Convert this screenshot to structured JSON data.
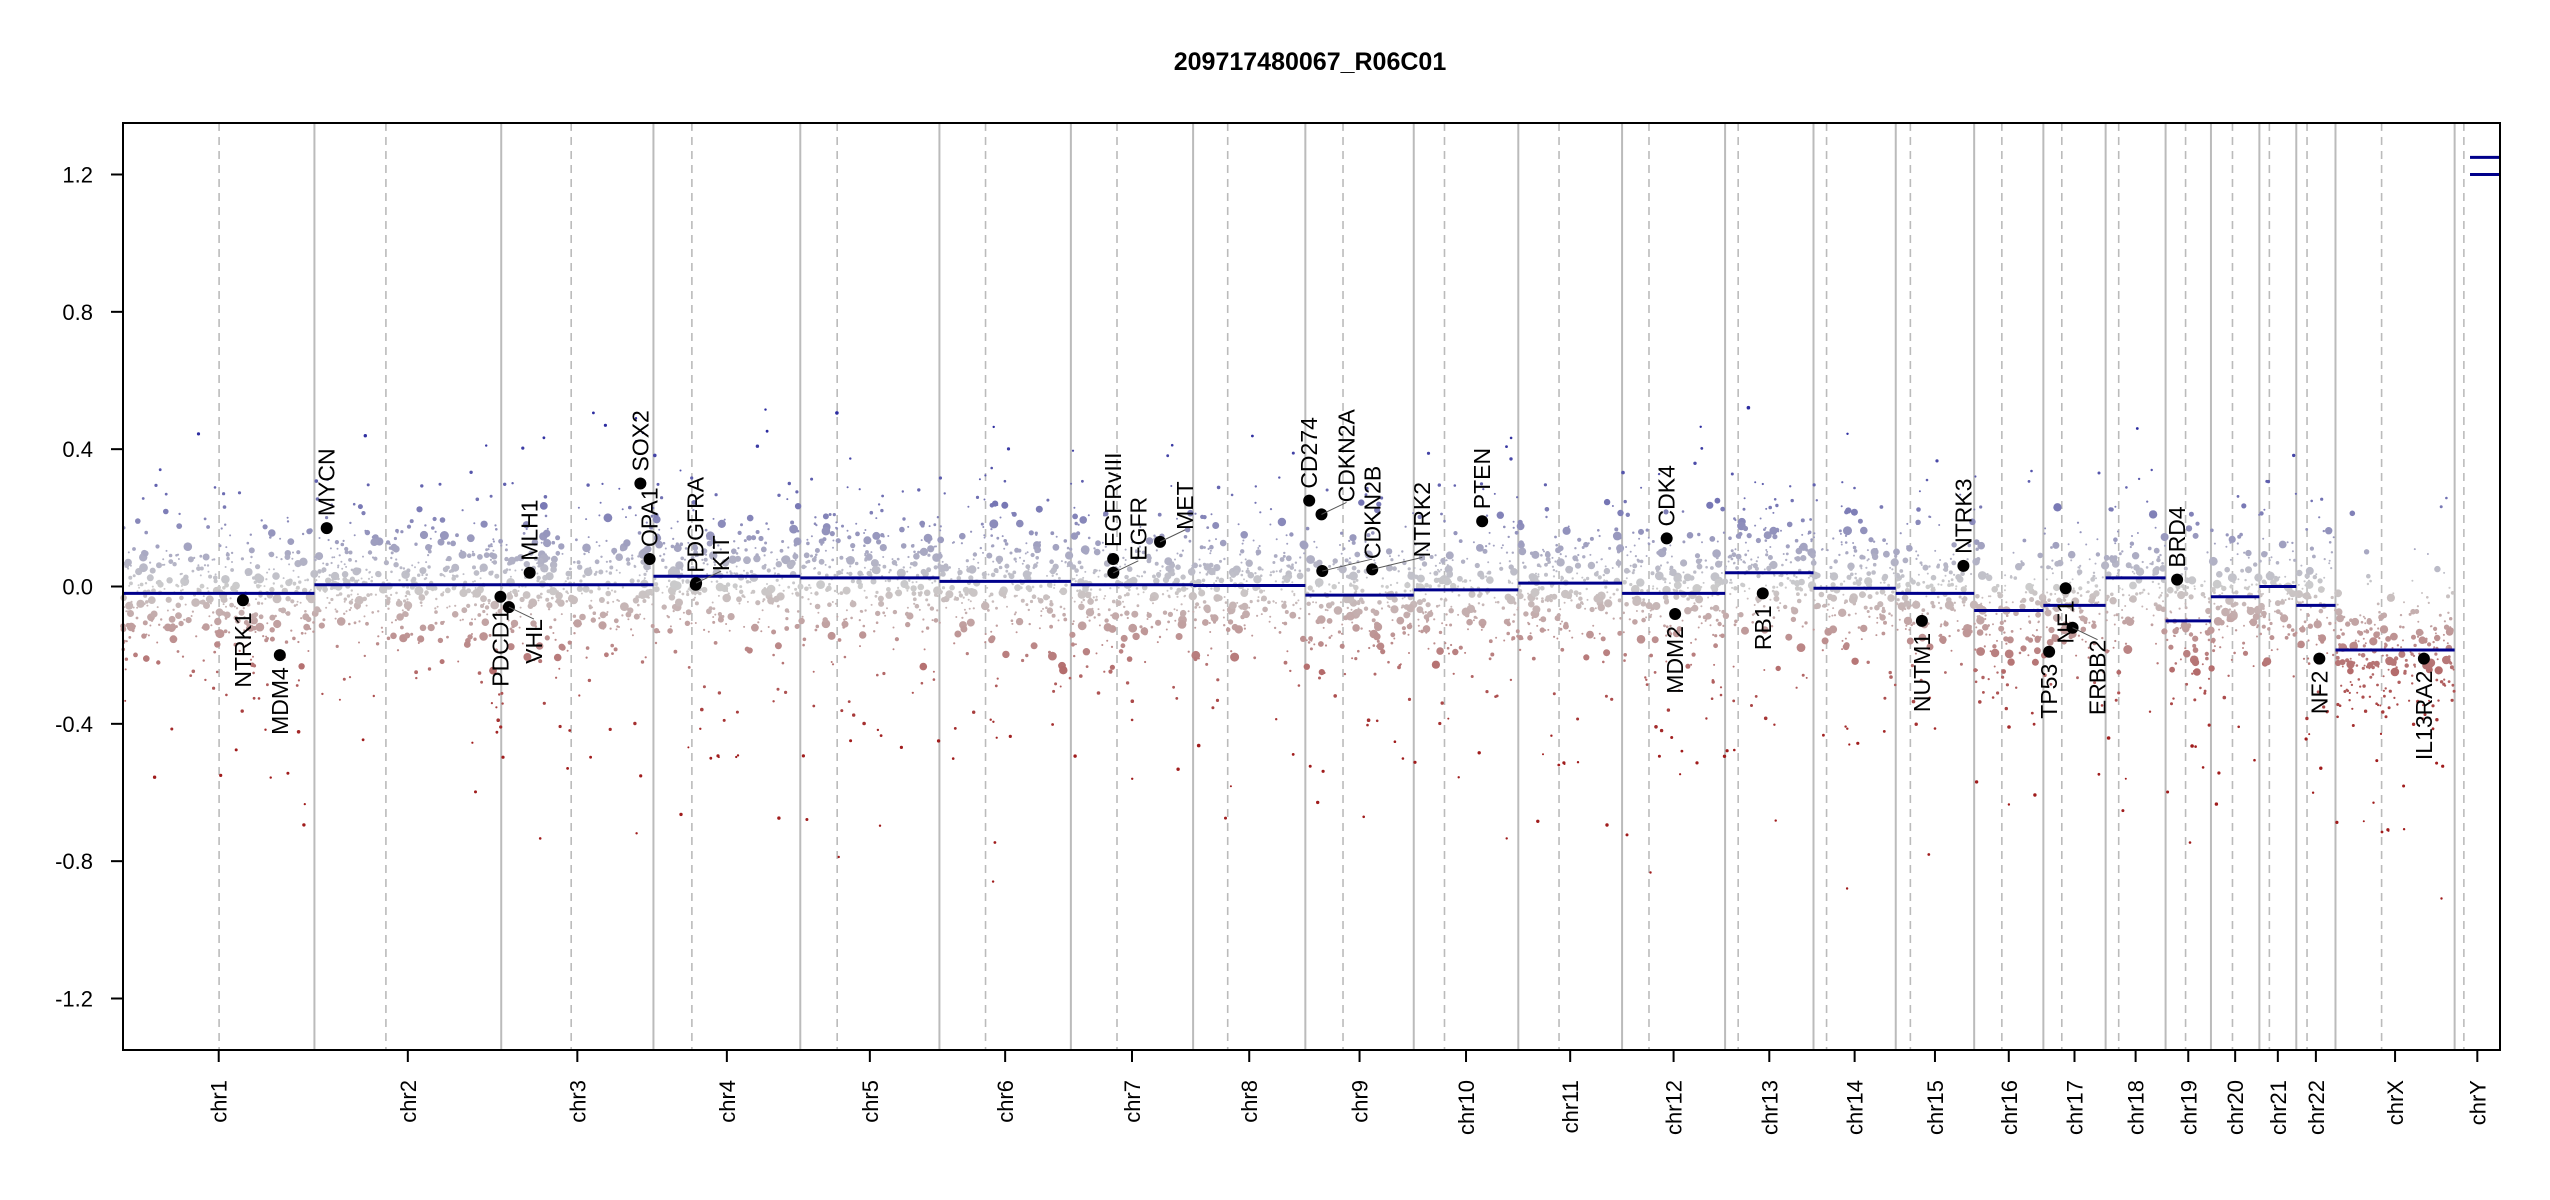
{
  "chart_data": {
    "type": "scatter",
    "title": "209717480067_R06C01",
    "xlabel": "",
    "ylabel": "",
    "ylim": [
      -1.35,
      1.35
    ],
    "yticks": [
      "1.2",
      "0.8",
      "0.4",
      "0.0",
      "-0.4",
      "-0.8",
      "-1.2"
    ],
    "ytick_values": [
      1.2,
      0.8,
      0.4,
      0.0,
      -0.4,
      -0.8,
      -1.2
    ],
    "grid": false,
    "chromosomes": [
      {
        "name": "chr1",
        "length_mb": 249,
        "centromere_mb": 125,
        "segments": [
          {
            "start": 0,
            "end": 249,
            "value": -0.02
          }
        ]
      },
      {
        "name": "chr2",
        "length_mb": 243,
        "centromere_mb": 93,
        "segments": [
          {
            "start": 0,
            "end": 243,
            "value": 0.005
          }
        ]
      },
      {
        "name": "chr3",
        "length_mb": 198,
        "centromere_mb": 91,
        "segments": [
          {
            "start": 0,
            "end": 198,
            "value": 0.005
          }
        ]
      },
      {
        "name": "chr4",
        "length_mb": 191,
        "centromere_mb": 50,
        "segments": [
          {
            "start": 0,
            "end": 191,
            "value": 0.03
          }
        ]
      },
      {
        "name": "chr5",
        "length_mb": 181,
        "centromere_mb": 48,
        "segments": [
          {
            "start": 0,
            "end": 181,
            "value": 0.025
          }
        ]
      },
      {
        "name": "chr6",
        "length_mb": 171,
        "centromere_mb": 60,
        "segments": [
          {
            "start": 0,
            "end": 171,
            "value": 0.015
          }
        ]
      },
      {
        "name": "chr7",
        "length_mb": 159,
        "centromere_mb": 60,
        "segments": [
          {
            "start": 0,
            "end": 159,
            "value": 0.005
          }
        ]
      },
      {
        "name": "chr8",
        "length_mb": 146,
        "centromere_mb": 45,
        "segments": [
          {
            "start": 0,
            "end": 146,
            "value": 0.003
          }
        ]
      },
      {
        "name": "chr9",
        "length_mb": 141,
        "centromere_mb": 49,
        "segments": [
          {
            "start": 0,
            "end": 141,
            "value": -0.025
          }
        ]
      },
      {
        "name": "chr10",
        "length_mb": 136,
        "centromere_mb": 40,
        "segments": [
          {
            "start": 0,
            "end": 136,
            "value": -0.01
          }
        ]
      },
      {
        "name": "chr11",
        "length_mb": 135,
        "centromere_mb": 53,
        "segments": [
          {
            "start": 0,
            "end": 135,
            "value": 0.01
          }
        ]
      },
      {
        "name": "chr12",
        "length_mb": 134,
        "centromere_mb": 35,
        "segments": [
          {
            "start": 0,
            "end": 134,
            "value": -0.02
          }
        ]
      },
      {
        "name": "chr13",
        "length_mb": 115,
        "centromere_mb": 17,
        "segments": [
          {
            "start": 0,
            "end": 115,
            "value": 0.04
          }
        ]
      },
      {
        "name": "chr14",
        "length_mb": 107,
        "centromere_mb": 17,
        "segments": [
          {
            "start": 0,
            "end": 107,
            "value": -0.005
          }
        ]
      },
      {
        "name": "chr15",
        "length_mb": 102,
        "centromere_mb": 19,
        "segments": [
          {
            "start": 0,
            "end": 102,
            "value": -0.02
          }
        ]
      },
      {
        "name": "chr16",
        "length_mb": 90,
        "centromere_mb": 36,
        "segments": [
          {
            "start": 0,
            "end": 90,
            "value": -0.07
          }
        ]
      },
      {
        "name": "chr17",
        "length_mb": 81,
        "centromere_mb": 24,
        "segments": [
          {
            "start": 0,
            "end": 81,
            "value": -0.055
          }
        ]
      },
      {
        "name": "chr18",
        "length_mb": 78,
        "centromere_mb": 17,
        "segments": [
          {
            "start": 0,
            "end": 78,
            "value": 0.025
          }
        ]
      },
      {
        "name": "chr19",
        "length_mb": 59,
        "centromere_mb": 26,
        "segments": [
          {
            "start": 0,
            "end": 59,
            "value": -0.1
          }
        ]
      },
      {
        "name": "chr20",
        "length_mb": 63,
        "centromere_mb": 28,
        "segments": [
          {
            "start": 0,
            "end": 63,
            "value": -0.03
          }
        ]
      },
      {
        "name": "chr21",
        "length_mb": 48,
        "centromere_mb": 13,
        "segments": [
          {
            "start": 0,
            "end": 48,
            "value": 0.0
          }
        ]
      },
      {
        "name": "chr22",
        "length_mb": 51,
        "centromere_mb": 14,
        "segments": [
          {
            "start": 0,
            "end": 51,
            "value": -0.055
          }
        ]
      },
      {
        "name": "chrX",
        "length_mb": 155,
        "centromere_mb": 60,
        "segments": [
          {
            "start": 0,
            "end": 155,
            "value": -0.185
          }
        ]
      },
      {
        "name": "chrY",
        "length_mb": 59,
        "centromere_mb": 12,
        "segments": [
          {
            "start": 20,
            "end": 59,
            "value": 1.25
          },
          {
            "start": 20,
            "end": 59,
            "value": 1.2
          }
        ]
      }
    ],
    "genes": [
      {
        "label": "NTRK1",
        "chr": "chr1",
        "pos_mb": 156,
        "value": -0.04
      },
      {
        "label": "MDM4",
        "chr": "chr1",
        "pos_mb": 204,
        "value": -0.2
      },
      {
        "label": "MYCN",
        "chr": "chr2",
        "pos_mb": 16,
        "value": 0.17
      },
      {
        "label": "PDCD1",
        "chr": "chr2",
        "pos_mb": 242,
        "value": -0.03
      },
      {
        "label": "VHL",
        "chr": "chr3",
        "pos_mb": 10,
        "value": -0.06
      },
      {
        "label": "MLH1",
        "chr": "chr3",
        "pos_mb": 37,
        "value": 0.04
      },
      {
        "label": "SOX2",
        "chr": "chr3",
        "pos_mb": 181,
        "value": 0.3
      },
      {
        "label": "OPA1",
        "chr": "chr3",
        "pos_mb": 193,
        "value": 0.08
      },
      {
        "label": "PDGFRA",
        "chr": "chr4",
        "pos_mb": 55,
        "value": 0.005
      },
      {
        "label": "KIT",
        "chr": "chr4",
        "pos_mb": 55.5,
        "value": 0.01
      },
      {
        "label": "EGFRvIII",
        "chr": "chr7",
        "pos_mb": 55,
        "value": 0.08
      },
      {
        "label": "EGFR",
        "chr": "chr7",
        "pos_mb": 55.2,
        "value": 0.04
      },
      {
        "label": "MET",
        "chr": "chr7",
        "pos_mb": 116,
        "value": 0.13
      },
      {
        "label": "CD274",
        "chr": "chr9",
        "pos_mb": 5,
        "value": 0.25
      },
      {
        "label": "CDKN2A",
        "chr": "chr9",
        "pos_mb": 21,
        "value": 0.21
      },
      {
        "label": "CDKN2B",
        "chr": "chr9",
        "pos_mb": 22,
        "value": 0.045
      },
      {
        "label": "NTRK2",
        "chr": "chr9",
        "pos_mb": 87,
        "value": 0.05
      },
      {
        "label": "PTEN",
        "chr": "chr10",
        "pos_mb": 89,
        "value": 0.19
      },
      {
        "label": "CDK4",
        "chr": "chr12",
        "pos_mb": 58,
        "value": 0.14
      },
      {
        "label": "MDM2",
        "chr": "chr12",
        "pos_mb": 69,
        "value": -0.08
      },
      {
        "label": "RB1",
        "chr": "chr13",
        "pos_mb": 49,
        "value": -0.02
      },
      {
        "label": "NUTM1",
        "chr": "chr15",
        "pos_mb": 34,
        "value": -0.1
      },
      {
        "label": "NTRK3",
        "chr": "chr15",
        "pos_mb": 88,
        "value": 0.06
      },
      {
        "label": "TP53",
        "chr": "chr17",
        "pos_mb": 7.5,
        "value": -0.19
      },
      {
        "label": "NF1",
        "chr": "chr17",
        "pos_mb": 29,
        "value": -0.005
      },
      {
        "label": "ERBB2",
        "chr": "chr17",
        "pos_mb": 38,
        "value": -0.12
      },
      {
        "label": "BRD4",
        "chr": "chr19",
        "pos_mb": 15,
        "value": 0.02
      },
      {
        "label": "NF2",
        "chr": "chr22",
        "pos_mb": 30,
        "value": -0.21
      },
      {
        "label": "IL13RA2",
        "chr": "chrX",
        "pos_mb": 115,
        "value": -0.21
      }
    ],
    "colors": {
      "gain": "#2c2ca0",
      "neutral": "#cccccc",
      "loss": "#a01c1c",
      "segment": "#00008b",
      "boundary": "#bbbbbb",
      "centromere": "#bbbbbb",
      "gene_dot": "#000000"
    }
  }
}
